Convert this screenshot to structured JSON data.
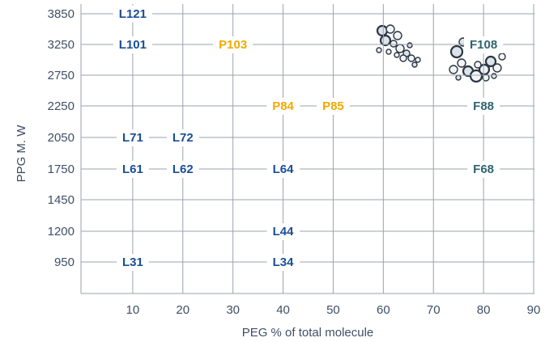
{
  "chart_data": {
    "type": "scatter",
    "xlabel": "PEG % of total molecule",
    "ylabel": "PPG M. W",
    "x_ticks": [
      10,
      20,
      30,
      40,
      50,
      60,
      70,
      80,
      90
    ],
    "y_ticks": [
      950,
      1200,
      1450,
      1750,
      2050,
      2250,
      2750,
      3250,
      3850
    ],
    "y_scale": "categorical",
    "grid": true,
    "colors": {
      "L": "#1a4e96",
      "P": "#f2a900",
      "F": "#2f6470"
    },
    "points": [
      {
        "label": "L121",
        "x": 10,
        "y": 3850,
        "family": "L"
      },
      {
        "label": "L101",
        "x": 10,
        "y": 3250,
        "family": "L"
      },
      {
        "label": "P103",
        "x": 30,
        "y": 3250,
        "family": "P"
      },
      {
        "label": "F108",
        "x": 80,
        "y": 3250,
        "family": "F"
      },
      {
        "label": "P84",
        "x": 40,
        "y": 2250,
        "family": "P"
      },
      {
        "label": "P85",
        "x": 50,
        "y": 2250,
        "family": "P"
      },
      {
        "label": "F88",
        "x": 80,
        "y": 2250,
        "family": "F"
      },
      {
        "label": "L71",
        "x": 10,
        "y": 2050,
        "family": "L"
      },
      {
        "label": "L72",
        "x": 20,
        "y": 2050,
        "family": "L"
      },
      {
        "label": "L61",
        "x": 10,
        "y": 1750,
        "family": "L"
      },
      {
        "label": "L62",
        "x": 20,
        "y": 1750,
        "family": "L"
      },
      {
        "label": "L64",
        "x": 40,
        "y": 1750,
        "family": "L"
      },
      {
        "label": "F68",
        "x": 80,
        "y": 1750,
        "family": "F"
      },
      {
        "label": "L44",
        "x": 40,
        "y": 1200,
        "family": "L"
      },
      {
        "label": "L31",
        "x": 10,
        "y": 950,
        "family": "L"
      },
      {
        "label": "L34",
        "x": 40,
        "y": 950,
        "family": "L"
      }
    ],
    "decorations": [
      {
        "name": "bubble-cluster-top",
        "near_x": 62,
        "near_y": 3250
      },
      {
        "name": "bubble-cluster-f108",
        "near_x": 80,
        "near_y": 3250
      }
    ]
  }
}
